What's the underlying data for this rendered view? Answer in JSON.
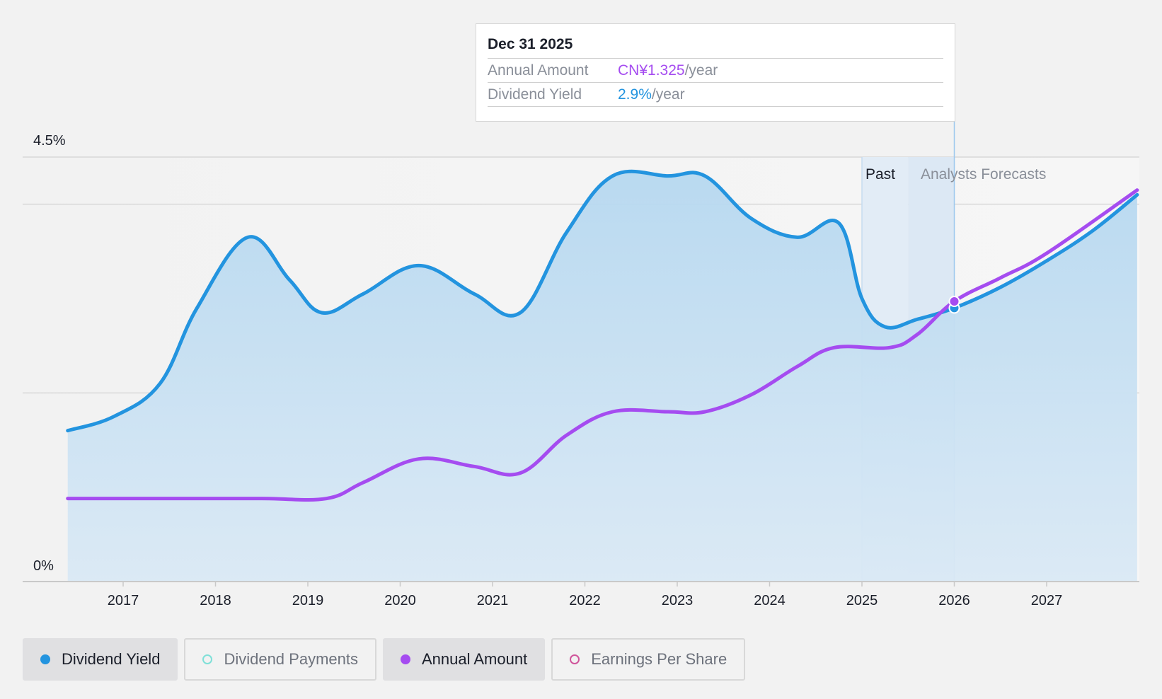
{
  "chart_data": {
    "type": "line",
    "y_axis": {
      "top_label": "4.5%",
      "bottom_label": "0%"
    },
    "x_ticks": [
      "2017",
      "2018",
      "2019",
      "2020",
      "2021",
      "2022",
      "2023",
      "2024",
      "2025",
      "2026",
      "2027"
    ],
    "periods": {
      "past": "Past",
      "forecast": "Analysts Forecasts"
    },
    "grid": true,
    "series": [
      {
        "name": "Dividend Yield",
        "color": "#2394df",
        "area": true,
        "points": [
          [
            2016.4,
            1.6
          ],
          [
            2016.9,
            1.75
          ],
          [
            2017.4,
            2.1
          ],
          [
            2017.8,
            2.9
          ],
          [
            2018.35,
            3.65
          ],
          [
            2018.8,
            3.2
          ],
          [
            2019.15,
            2.85
          ],
          [
            2019.6,
            3.05
          ],
          [
            2020.2,
            3.35
          ],
          [
            2020.8,
            3.05
          ],
          [
            2021.3,
            2.85
          ],
          [
            2021.8,
            3.7
          ],
          [
            2022.3,
            4.3
          ],
          [
            2022.9,
            4.3
          ],
          [
            2023.3,
            4.3
          ],
          [
            2023.8,
            3.85
          ],
          [
            2024.3,
            3.65
          ],
          [
            2024.75,
            3.8
          ],
          [
            2025.0,
            3.0
          ],
          [
            2025.25,
            2.7
          ],
          [
            2025.6,
            2.78
          ],
          [
            2026.0,
            2.9
          ],
          [
            2026.5,
            3.12
          ],
          [
            2027.0,
            3.4
          ],
          [
            2027.5,
            3.72
          ],
          [
            2027.98,
            4.1
          ]
        ]
      },
      {
        "name": "Annual Amount",
        "color": "#a54cf0",
        "area": false,
        "points": [
          [
            2016.4,
            0.88
          ],
          [
            2017.5,
            0.88
          ],
          [
            2018.5,
            0.88
          ],
          [
            2019.2,
            0.88
          ],
          [
            2019.6,
            1.05
          ],
          [
            2020.2,
            1.3
          ],
          [
            2020.8,
            1.22
          ],
          [
            2021.3,
            1.15
          ],
          [
            2021.8,
            1.55
          ],
          [
            2022.3,
            1.8
          ],
          [
            2022.9,
            1.8
          ],
          [
            2023.3,
            1.8
          ],
          [
            2023.8,
            1.98
          ],
          [
            2024.3,
            2.28
          ],
          [
            2024.7,
            2.48
          ],
          [
            2025.3,
            2.48
          ],
          [
            2025.6,
            2.62
          ],
          [
            2026.0,
            2.97
          ],
          [
            2026.5,
            3.22
          ],
          [
            2027.0,
            3.48
          ],
          [
            2027.98,
            4.15
          ]
        ]
      }
    ],
    "highlight_x": 2026.0,
    "past_start_x": 2025.0,
    "past_end_x": 2025.5
  },
  "tooltip": {
    "date": "Dec 31 2025",
    "rows": [
      {
        "label": "Annual Amount",
        "value": "CN¥1.325",
        "unit": "/year"
      },
      {
        "label": "Dividend Yield",
        "value": "2.9%",
        "unit": "/year"
      }
    ]
  },
  "legend": [
    {
      "label": "Dividend Yield",
      "color": "#2394df",
      "active": true,
      "filled": true
    },
    {
      "label": "Dividend Payments",
      "color": "#7fe0d8",
      "active": false,
      "filled": false
    },
    {
      "label": "Annual Amount",
      "color": "#a54cf0",
      "active": true,
      "filled": true
    },
    {
      "label": "Earnings Per Share",
      "color": "#d0559b",
      "active": false,
      "filled": false
    }
  ]
}
